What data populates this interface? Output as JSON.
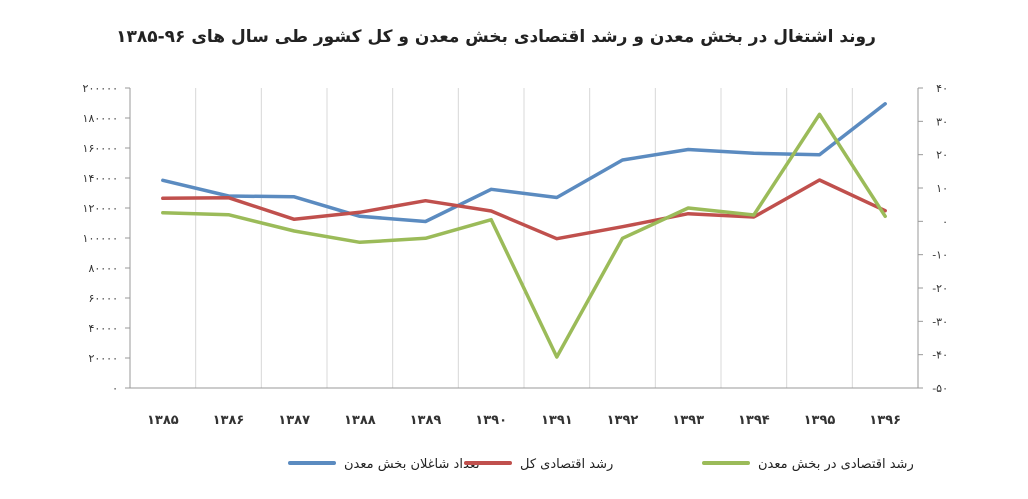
{
  "chart_data": {
    "type": "line",
    "title": "روند اشتغال در بخش معدن و رشد اقتصادی بخش معدن و کل کشور طی سال های ۹۶-۱۳۸۵",
    "categories": [
      "۱۳۸۵",
      "۱۳۸۶",
      "۱۳۸۷",
      "۱۳۸۸",
      "۱۳۸۹",
      "۱۳۹۰",
      "۱۳۹۱",
      "۱۳۹۲",
      "۱۳۹۳",
      "۱۳۹۴",
      "۱۳۹۵",
      "۱۳۹۶"
    ],
    "left_axis": {
      "min": 0,
      "max": 200000,
      "step": 20000,
      "tick_labels": [
        "۰",
        "۲۰۰۰۰",
        "۴۰۰۰۰",
        "۶۰۰۰۰",
        "۸۰۰۰۰",
        "۱۰۰۰۰۰",
        "۱۲۰۰۰۰",
        "۱۴۰۰۰۰",
        "۱۶۰۰۰۰",
        "۱۸۰۰۰۰",
        "۲۰۰۰۰۰"
      ]
    },
    "right_axis": {
      "min": -50,
      "max": 40,
      "step": 10,
      "tick_labels": [
        "-۵۰",
        "-۴۰",
        "-۳۰",
        "-۲۰",
        "-۱۰",
        "۰",
        "۱۰",
        "۲۰",
        "۳۰",
        "۴۰"
      ]
    },
    "series": [
      {
        "name": "تعداد شاغلان بخش معدن",
        "axis": "left",
        "color": "#5b8bc0",
        "values": [
          138500,
          128000,
          127500,
          114500,
          111000,
          132500,
          127000,
          152000,
          159000,
          156500,
          155500,
          189500
        ]
      },
      {
        "name": "رشد اقتصادی کل",
        "axis": "right",
        "color": "#c0504d",
        "values": [
          6.9,
          7.1,
          0.6,
          2.7,
          6.2,
          3.1,
          -5.2,
          -1.6,
          2.3,
          1.3,
          12.4,
          3.2
        ]
      },
      {
        "name": "رشد اقتصادی در بخش معدن",
        "axis": "right",
        "color": "#9bbb59",
        "values": [
          2.6,
          2.0,
          -2.9,
          -6.3,
          -5.1,
          0.5,
          -40.7,
          -5.1,
          4.0,
          1.9,
          32.1,
          1.5
        ]
      }
    ],
    "grid": {
      "vertical": true,
      "horizontal": false
    },
    "legend_position": "bottom"
  }
}
